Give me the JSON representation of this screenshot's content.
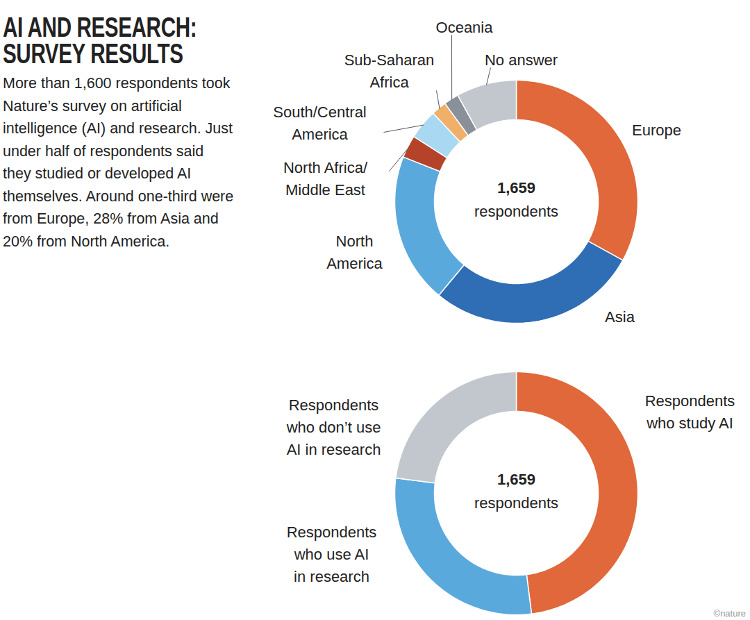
{
  "chart_data": [
    {
      "type": "donut",
      "title": "AI AND RESEARCH: SURVEY RESULTS",
      "subtitle": "More than 1,600 respondents took Nature’s survey on artificial intelligence (AI) and research. Just under half of respondents said they studied or developed AI themselves. Around one-third were from Europe, 28% from Asia and 20% from North America.",
      "categories": [
        "Europe",
        "Asia",
        "North America",
        "North Africa/Middle East",
        "South/Central America",
        "Sub-Saharan Africa",
        "Oceania",
        "No answer"
      ],
      "values": [
        33,
        28,
        20,
        3,
        4,
        2,
        2,
        8
      ],
      "colors": [
        "#e0683a",
        "#2f6db5",
        "#5aa9dd",
        "#b5432a",
        "#a9d8f2",
        "#f0b06a",
        "#8a9099",
        "#c2c7ce"
      ],
      "total": {
        "value": 1659,
        "label": "1,659"
      },
      "total_text": "respondents"
    },
    {
      "type": "donut",
      "categories": [
        "Respondents who study AI",
        "Respondents who use AI in research",
        "Respondents who don’t use AI in research"
      ],
      "values": [
        48,
        29,
        23
      ],
      "colors": [
        "#e0683a",
        "#5aa9dd",
        "#c2c7ce"
      ],
      "total": {
        "value": 1659,
        "label": "1,659"
      },
      "total_text": "respondents",
      "source": "©nature"
    }
  ]
}
